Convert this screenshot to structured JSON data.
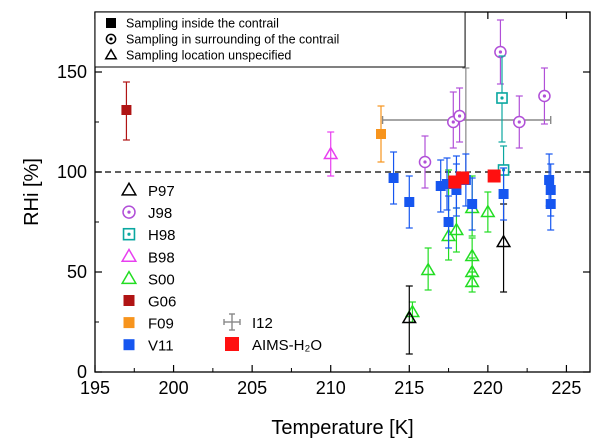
{
  "chart_data": {
    "type": "scatter",
    "xlabel": "Temperature [K]",
    "ylabel": "RHi [%]",
    "xlim": [
      195,
      226.5
    ],
    "ylim": [
      0,
      180
    ],
    "xticks": [
      195,
      200,
      205,
      210,
      215,
      220,
      225
    ],
    "yticks": [
      0,
      50,
      100,
      150
    ],
    "reference_line": {
      "y": 100,
      "style": "dashed"
    },
    "legend_top": [
      {
        "marker": "filled-square",
        "label": "Sampling inside the contrail"
      },
      {
        "marker": "dotted-circle",
        "label": "Sampling in surrounding of the contrail"
      },
      {
        "marker": "triangle",
        "label": "Sampling location unspecified"
      }
    ],
    "legend_left": [
      {
        "name": "P97",
        "marker": "triangle",
        "color": "#000000"
      },
      {
        "name": "J98",
        "marker": "dotted-circle",
        "color": "#b14fd8"
      },
      {
        "name": "H98",
        "marker": "dotted-square",
        "color": "#0aa7a0"
      },
      {
        "name": "B98",
        "marker": "triangle",
        "color": "#e83ff0"
      },
      {
        "name": "S00",
        "marker": "triangle",
        "color": "#22dd22"
      },
      {
        "name": "G06",
        "marker": "filled-square",
        "color": "#b01414"
      },
      {
        "name": "F09",
        "marker": "filled-square",
        "color": "#f7941d"
      },
      {
        "name": "V11",
        "marker": "filled-square",
        "color": "#1656f0"
      }
    ],
    "legend_right": [
      {
        "name": "I12",
        "marker": "errorcross",
        "color": "#888888"
      },
      {
        "name": "AIMS-H₂O",
        "marker": "filled-square",
        "color": "#ff1010"
      }
    ],
    "series": [
      {
        "name": "P97",
        "points": [
          {
            "x": 215.0,
            "y": 27,
            "lo": 9,
            "hi": 43
          },
          {
            "x": 221.0,
            "y": 65,
            "lo": 40,
            "hi": 84
          }
        ]
      },
      {
        "name": "J98",
        "points": [
          {
            "x": 216.0,
            "y": 105,
            "lo": 92,
            "hi": 118
          },
          {
            "x": 217.8,
            "y": 125,
            "lo": 112,
            "hi": 140
          },
          {
            "x": 218.2,
            "y": 128,
            "lo": 115,
            "hi": 142
          },
          {
            "x": 220.8,
            "y": 160,
            "lo": 144,
            "hi": 176
          },
          {
            "x": 222.0,
            "y": 125,
            "lo": 112,
            "hi": 138
          },
          {
            "x": 223.6,
            "y": 138,
            "lo": 124,
            "hi": 152
          }
        ]
      },
      {
        "name": "H98",
        "points": [
          {
            "x": 220.9,
            "y": 137,
            "lo": 115,
            "hi": 158
          },
          {
            "x": 221.0,
            "y": 101,
            "lo": 88,
            "hi": 113
          }
        ]
      },
      {
        "name": "B98",
        "points": [
          {
            "x": 210.0,
            "y": 109,
            "lo": 98,
            "hi": 120
          }
        ]
      },
      {
        "name": "S00",
        "points": [
          {
            "x": 215.2,
            "y": 30,
            "lo": 25,
            "hi": 35
          },
          {
            "x": 216.2,
            "y": 51,
            "lo": 41,
            "hi": 62
          },
          {
            "x": 217.5,
            "y": 68,
            "lo": 56,
            "hi": 101
          },
          {
            "x": 218.0,
            "y": 71,
            "lo": 60,
            "hi": 82
          },
          {
            "x": 219.0,
            "y": 82,
            "lo": 68,
            "hi": 98
          },
          {
            "x": 219.0,
            "y": 58,
            "lo": 48,
            "hi": 67
          },
          {
            "x": 219.0,
            "y": 50,
            "lo": 43,
            "hi": 57
          },
          {
            "x": 219.0,
            "y": 45,
            "lo": 40,
            "hi": 50
          },
          {
            "x": 220.0,
            "y": 80,
            "lo": 70,
            "hi": 90
          }
        ]
      },
      {
        "name": "G06",
        "points": [
          {
            "x": 197.0,
            "y": 131,
            "lo": 116,
            "hi": 145
          }
        ]
      },
      {
        "name": "F09",
        "points": [
          {
            "x": 213.2,
            "y": 119,
            "lo": 105,
            "hi": 133
          }
        ]
      },
      {
        "name": "V11",
        "points": [
          {
            "x": 214.0,
            "y": 97,
            "lo": 84,
            "hi": 110
          },
          {
            "x": 215.0,
            "y": 85,
            "lo": 72,
            "hi": 98
          },
          {
            "x": 217.0,
            "y": 93,
            "lo": 80,
            "hi": 106
          },
          {
            "x": 217.4,
            "y": 94,
            "lo": 81,
            "hi": 107
          },
          {
            "x": 217.5,
            "y": 75,
            "lo": 62,
            "hi": 88
          },
          {
            "x": 218.0,
            "y": 91,
            "lo": 78,
            "hi": 104
          },
          {
            "x": 218.0,
            "y": 95,
            "lo": 82,
            "hi": 108
          },
          {
            "x": 218.6,
            "y": 96,
            "lo": 83,
            "hi": 109
          },
          {
            "x": 219.0,
            "y": 84,
            "lo": 71,
            "hi": 97
          },
          {
            "x": 221.0,
            "y": 89,
            "lo": 76,
            "hi": 102
          },
          {
            "x": 223.9,
            "y": 96,
            "lo": 83,
            "hi": 109
          },
          {
            "x": 224.0,
            "y": 91,
            "lo": 78,
            "hi": 104
          },
          {
            "x": 224.0,
            "y": 84,
            "lo": 71,
            "hi": 97
          }
        ]
      },
      {
        "name": "AIMS-H₂O",
        "points": [
          {
            "x": 217.9,
            "y": 95
          },
          {
            "x": 218.4,
            "y": 97
          },
          {
            "x": 220.4,
            "y": 98
          }
        ]
      },
      {
        "name": "I12",
        "points": [
          {
            "x": 218.6,
            "y": 126,
            "xlo": 213.3,
            "xhi": 224.0,
            "lo": 100,
            "hi": 152
          }
        ]
      }
    ]
  }
}
